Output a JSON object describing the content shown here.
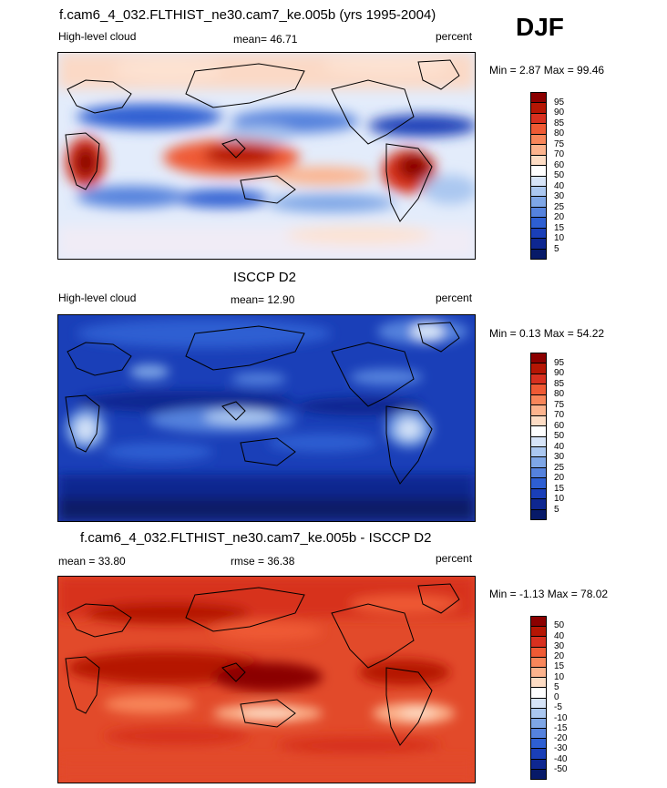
{
  "season": "DJF",
  "panels": [
    {
      "title": "f.cam6_4_032.FLTHIST_ne30.cam7_ke.005b (yrs 1995-2004)",
      "left_label": "High-level cloud",
      "center_label": "mean=  46.71",
      "right_label": "percent",
      "minmax": "Min =   2.87 Max =  99.46",
      "colorbar_levels": [
        "95",
        "90",
        "85",
        "80",
        "75",
        "70",
        "60",
        "50",
        "40",
        "30",
        "25",
        "20",
        "15",
        "10",
        "5"
      ],
      "colorbar_colors": [
        "#8b0000",
        "#b51604",
        "#d7301f",
        "#ef5a34",
        "#f8865a",
        "#fcb38d",
        "#fddcc4",
        "#ffffff",
        "#d6e4f8",
        "#aac7f0",
        "#7ea6e6",
        "#5582dd",
        "#2e5fd2",
        "#1a3fb8",
        "#0e2790",
        "#071a68"
      ]
    },
    {
      "title": "ISCCP D2",
      "left_label": "High-level cloud",
      "center_label": "mean=  12.90",
      "right_label": "percent",
      "minmax": "Min =   0.13 Max =  54.22",
      "colorbar_levels": [
        "95",
        "90",
        "85",
        "80",
        "75",
        "70",
        "60",
        "50",
        "40",
        "30",
        "25",
        "20",
        "15",
        "10",
        "5"
      ],
      "colorbar_colors": [
        "#8b0000",
        "#b51604",
        "#d7301f",
        "#ef5a34",
        "#f8865a",
        "#fcb38d",
        "#fddcc4",
        "#ffffff",
        "#d6e4f8",
        "#aac7f0",
        "#7ea6e6",
        "#5582dd",
        "#2e5fd2",
        "#1a3fb8",
        "#0e2790",
        "#071a68"
      ]
    },
    {
      "title": "f.cam6_4_032.FLTHIST_ne30.cam7_ke.005b - ISCCP D2",
      "left_label": "mean =  33.80",
      "center_label": "rmse =  36.38",
      "right_label": "percent",
      "minmax": "Min =  -1.13 Max =  78.02",
      "colorbar_levels": [
        "50",
        "40",
        "30",
        "20",
        "15",
        "10",
        "5",
        "0",
        "-5",
        "-10",
        "-15",
        "-20",
        "-30",
        "-40",
        "-50"
      ],
      "colorbar_colors": [
        "#8b0000",
        "#b51604",
        "#d7301f",
        "#ef5a34",
        "#f8865a",
        "#fcb38d",
        "#fddcc4",
        "#ffffff",
        "#d6e4f8",
        "#aac7f0",
        "#7ea6e6",
        "#5582dd",
        "#2e5fd2",
        "#1a3fb8",
        "#0e2790",
        "#071a68"
      ]
    }
  ]
}
